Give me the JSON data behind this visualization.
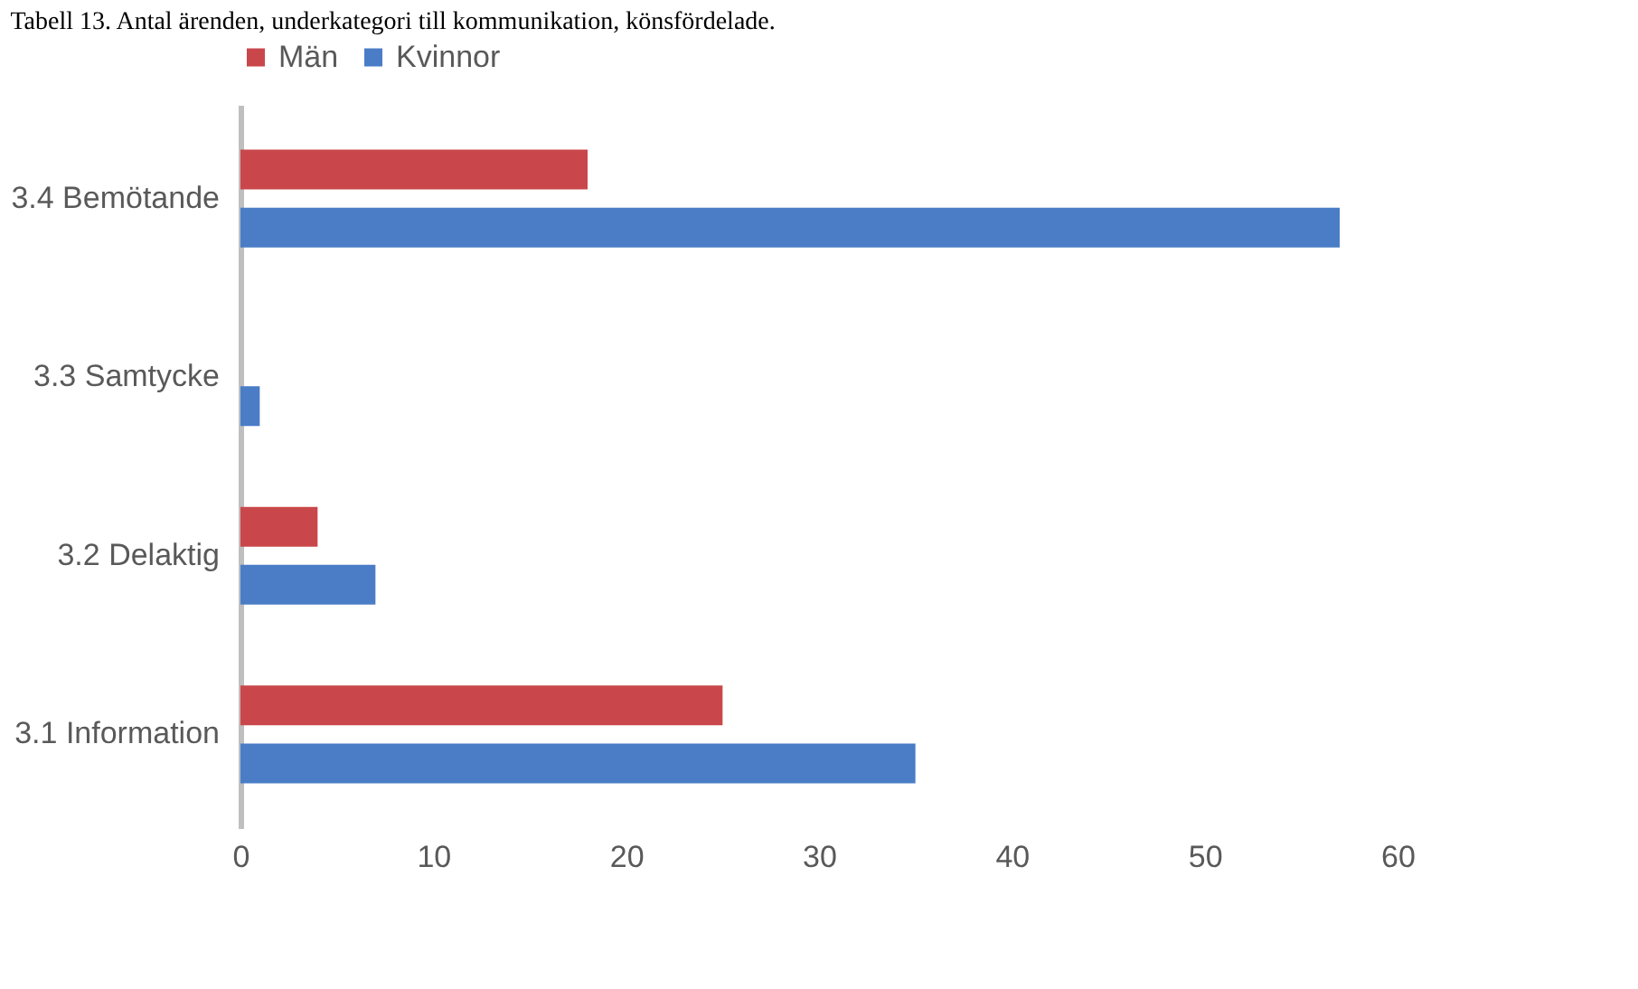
{
  "chart_data": {
    "type": "bar",
    "orientation": "horizontal",
    "title": "Tabell 13. Antal ärenden, underkategori till kommunikation, könsfördelade.",
    "categories": [
      "3.4 Bemötande",
      "3.3 Samtycke",
      "3.2 Delaktig",
      "3.1 Information"
    ],
    "series": [
      {
        "name": "Män",
        "color": "#c9474a",
        "values": [
          18,
          0,
          4,
          25
        ]
      },
      {
        "name": "Kvinnor",
        "color": "#4a7dc6",
        "values": [
          57,
          1,
          7,
          35
        ]
      }
    ],
    "xlim": [
      0,
      60
    ],
    "xticks": [
      0,
      10,
      20,
      30,
      40,
      50,
      60
    ],
    "grid": false,
    "legend": "top"
  }
}
